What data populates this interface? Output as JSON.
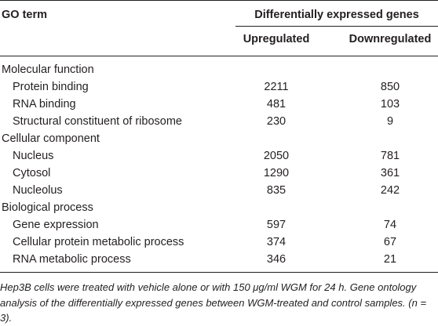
{
  "header": {
    "col1": "GO term",
    "group": "Differentially expressed genes",
    "col2": "Upregulated",
    "col3": "Downregulated"
  },
  "sections": [
    {
      "title": "Molecular function",
      "rows": [
        {
          "term": "Protein binding",
          "up": "2211",
          "down": "850"
        },
        {
          "term": "RNA binding",
          "up": "481",
          "down": "103"
        },
        {
          "term": "Structural constituent of ribosome",
          "up": "230",
          "down": "9"
        }
      ]
    },
    {
      "title": "Cellular component",
      "rows": [
        {
          "term": "Nucleus",
          "up": "2050",
          "down": "781"
        },
        {
          "term": "Cytosol",
          "up": "1290",
          "down": "361"
        },
        {
          "term": "Nucleolus",
          "up": "835",
          "down": "242"
        }
      ]
    },
    {
      "title": "Biological process",
      "rows": [
        {
          "term": "Gene expression",
          "up": "597",
          "down": "74"
        },
        {
          "term": "Cellular protein metabolic process",
          "up": "374",
          "down": "67"
        },
        {
          "term": "RNA metabolic process",
          "up": "346",
          "down": "21"
        }
      ]
    }
  ],
  "footnote": "Hep3B cells were treated with vehicle alone or with 150 μg/ml WGM for 24 h. Gene ontology analysis of the differentially expressed genes between WGM-treated and control samples. (n = 3)."
}
